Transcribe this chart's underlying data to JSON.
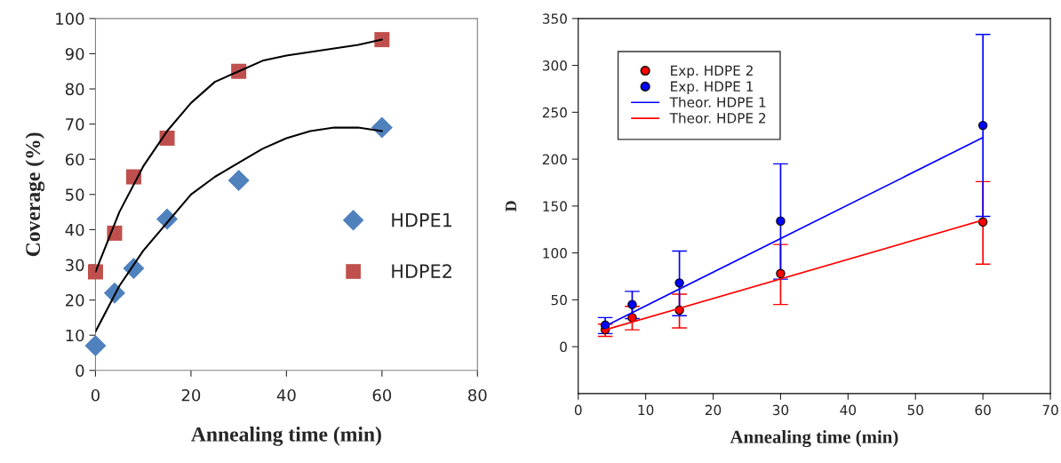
{
  "chart_data": [
    {
      "type": "scatter",
      "xlabel": "Annealing time (min)",
      "ylabel": "Coverage (%)",
      "xlim": [
        0,
        80
      ],
      "xticks": [
        0,
        20,
        40,
        60,
        80
      ],
      "ylim": [
        0,
        100
      ],
      "yticks": [
        0,
        10,
        20,
        30,
        40,
        50,
        60,
        70,
        80,
        90,
        100
      ],
      "grid": false,
      "legend": "right",
      "series": [
        {
          "name": "HDPE1",
          "color": "#4f81bd",
          "marker": "diamond",
          "x": [
            0,
            4,
            8,
            15,
            30,
            60
          ],
          "values": [
            7,
            22,
            29,
            43,
            54,
            69
          ]
        },
        {
          "name": "HDPE2",
          "color": "#c0504d",
          "marker": "square",
          "x": [
            0,
            4,
            8,
            15,
            30,
            60
          ],
          "values": [
            28,
            39,
            55,
            66,
            85,
            94
          ]
        },
        {
          "type": "line",
          "color": "#000000",
          "marker": "none",
          "x": [
            0,
            5,
            10,
            15,
            20,
            25,
            30,
            35,
            40,
            45,
            50,
            55,
            60
          ],
          "values": [
            11,
            24,
            34,
            42,
            50,
            55,
            59,
            63,
            66,
            68,
            69,
            69,
            68
          ]
        },
        {
          "type": "line",
          "color": "#000000",
          "marker": "none",
          "x": [
            0,
            5,
            10,
            15,
            20,
            25,
            30,
            35,
            40,
            45,
            50,
            55,
            60
          ],
          "values": [
            28,
            45,
            58,
            68,
            76,
            82,
            85,
            88,
            89.5,
            90.5,
            91.5,
            92.5,
            94
          ]
        }
      ]
    },
    {
      "type": "scatter",
      "xlabel": "Annealing time (min)",
      "ylabel": "D",
      "xlim": [
        0,
        70
      ],
      "xticks": [
        0,
        10,
        20,
        30,
        40,
        50,
        60,
        70
      ],
      "ylim": [
        -50,
        350
      ],
      "yticks": [
        0,
        50,
        100,
        150,
        200,
        250,
        300,
        350
      ],
      "grid": false,
      "legend": "top left",
      "series": [
        {
          "name": "Exp. HDPE 2",
          "color": "#ff0000",
          "marker": "circle",
          "x": [
            4,
            8,
            15,
            30,
            60
          ],
          "values": [
            18,
            31,
            39,
            78,
            133
          ],
          "errors": [
            [
              11,
              24
            ],
            [
              18,
              43
            ],
            [
              20,
              56
            ],
            [
              45,
              109
            ],
            [
              88,
              176
            ]
          ]
        },
        {
          "name": "Exp. HDPE 1",
          "color": "#0000ff",
          "marker": "circle",
          "x": [
            4,
            8,
            15,
            30,
            60
          ],
          "values": [
            23,
            45,
            68,
            134,
            236
          ],
          "errors": [
            [
              14,
              31
            ],
            [
              30,
              59
            ],
            [
              33,
              102
            ],
            [
              72,
              195
            ],
            [
              139,
              333
            ]
          ]
        },
        {
          "name": "Theor. HDPE 1",
          "type": "line",
          "color": "#0000ff",
          "marker": "none",
          "x": [
            4,
            60
          ],
          "values": [
            22,
            223
          ]
        },
        {
          "name": "Theor. HDPE 2",
          "type": "line",
          "color": "#ff0000",
          "marker": "none",
          "x": [
            4,
            60
          ],
          "values": [
            18,
            135
          ]
        }
      ]
    }
  ]
}
